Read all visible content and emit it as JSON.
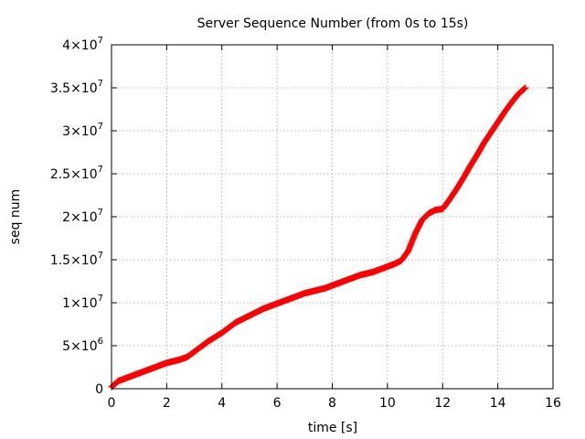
{
  "chart_data": {
    "type": "scatter",
    "title": "Server Sequence Number (from 0s to 15s)",
    "xlabel": "time [s]",
    "ylabel": "seq num",
    "xlim": [
      0,
      16
    ],
    "ylim": [
      0,
      40000000
    ],
    "grid": true,
    "marker": "plus",
    "color": "#ff0000",
    "x_ticks": [
      {
        "value": 0,
        "label": "0"
      },
      {
        "value": 2,
        "label": "2"
      },
      {
        "value": 4,
        "label": "4"
      },
      {
        "value": 6,
        "label": "6"
      },
      {
        "value": 8,
        "label": "8"
      },
      {
        "value": 10,
        "label": "10"
      },
      {
        "value": 12,
        "label": "12"
      },
      {
        "value": 14,
        "label": "14"
      },
      {
        "value": 16,
        "label": "16"
      }
    ],
    "y_ticks": [
      {
        "value": 0,
        "mantissa": "0",
        "exponent": ""
      },
      {
        "value": 5000000,
        "mantissa": "5×10",
        "exponent": "6"
      },
      {
        "value": 10000000,
        "mantissa": "1×10",
        "exponent": "7"
      },
      {
        "value": 15000000,
        "mantissa": "1.5×10",
        "exponent": "7"
      },
      {
        "value": 20000000,
        "mantissa": "2×10",
        "exponent": "7"
      },
      {
        "value": 25000000,
        "mantissa": "2.5×10",
        "exponent": "7"
      },
      {
        "value": 30000000,
        "mantissa": "3×10",
        "exponent": "7"
      },
      {
        "value": 35000000,
        "mantissa": "3.5×10",
        "exponent": "7"
      },
      {
        "value": 40000000,
        "mantissa": "4×10",
        "exponent": "7"
      }
    ],
    "series": [
      {
        "x": [
          0,
          0.25,
          0.5,
          0.75,
          1.0,
          1.25,
          1.5,
          1.75,
          2.0,
          2.25,
          2.5,
          2.75,
          3.0,
          3.25,
          3.5,
          3.75,
          4.0,
          4.25,
          4.5,
          4.75,
          5.0,
          5.25,
          5.5,
          5.75,
          6.0,
          6.25,
          6.5,
          6.75,
          7.0,
          7.25,
          7.5,
          7.75,
          8.0,
          8.25,
          8.5,
          8.75,
          9.0,
          9.25,
          9.5,
          9.75,
          10.0,
          10.25,
          10.5,
          10.75,
          11.0,
          11.25,
          11.5,
          11.75,
          12.0,
          12.25,
          12.5,
          12.75,
          13.0,
          13.25,
          13.5,
          13.75,
          14.0,
          14.25,
          14.5,
          14.75,
          15.0
        ],
        "y": [
          200000,
          900000,
          1200000,
          1500000,
          1800000,
          2100000,
          2400000,
          2700000,
          3000000,
          3200000,
          3400000,
          3700000,
          4300000,
          4900000,
          5500000,
          6000000,
          6500000,
          7100000,
          7700000,
          8100000,
          8500000,
          8900000,
          9300000,
          9600000,
          9900000,
          10200000,
          10500000,
          10800000,
          11100000,
          11300000,
          11500000,
          11700000,
          12000000,
          12300000,
          12600000,
          12900000,
          13200000,
          13400000,
          13600000,
          13900000,
          14200000,
          14500000,
          14900000,
          16000000,
          18000000,
          19600000,
          20400000,
          20800000,
          20900000,
          22000000,
          23200000,
          24500000,
          25900000,
          27200000,
          28600000,
          29800000,
          31000000,
          32200000,
          33300000,
          34300000,
          35000000
        ]
      }
    ]
  }
}
